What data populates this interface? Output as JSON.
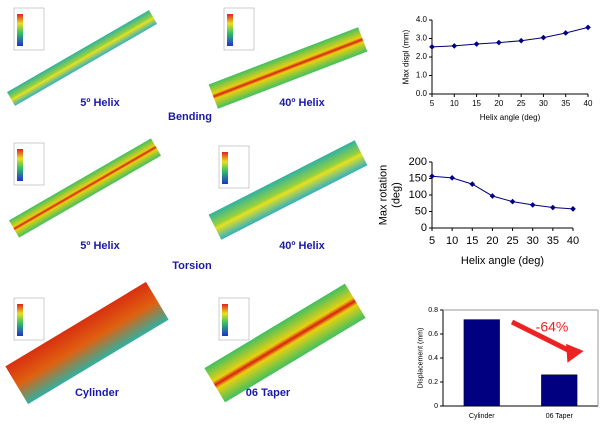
{
  "figures": {
    "rows": [
      {
        "left": "5º Helix",
        "right": "40º Helix",
        "caption": "Bending"
      },
      {
        "left": "5º Helix",
        "right": "40º Helix",
        "caption": "Torsion"
      },
      {
        "left": "Cylinder",
        "right": "06 Taper"
      }
    ]
  },
  "chart_data": [
    {
      "type": "line",
      "xlabel": "Helix angle (deg)",
      "ylabel": [
        "Max displ (mm)"
      ],
      "x": [
        5,
        10,
        15,
        20,
        25,
        30,
        35,
        40
      ],
      "values": [
        2.55,
        2.6,
        2.7,
        2.78,
        2.88,
        3.05,
        3.3,
        3.6
      ],
      "color": "#000080",
      "xlim": [
        5,
        40
      ],
      "xticks": [
        5,
        10,
        15,
        20,
        25,
        30,
        35,
        40
      ],
      "ylim": [
        0,
        4
      ],
      "yticks": [
        {
          "value": 0,
          "label": "0.0"
        },
        {
          "value": 1,
          "label": "1.0"
        },
        {
          "value": 2,
          "label": "2.0"
        },
        {
          "value": 3,
          "label": "3.0"
        },
        {
          "value": 4,
          "label": "4.0"
        }
      ]
    },
    {
      "type": "line",
      "xlabel": "Helix angle (deg)",
      "ylabel": [
        "Max rotation",
        "(deg)"
      ],
      "x": [
        5,
        10,
        15,
        20,
        25,
        30,
        35,
        40
      ],
      "values": [
        157,
        152,
        133,
        97,
        80,
        70,
        62,
        58
      ],
      "color": "#000080",
      "xlim": [
        5,
        40
      ],
      "xticks": [
        5,
        10,
        15,
        20,
        25,
        30,
        35,
        40
      ],
      "ylim": [
        0,
        200
      ],
      "yticks": [
        0,
        50,
        100,
        150,
        200
      ]
    },
    {
      "type": "bar",
      "ylabel": [
        "Displacement (mm)"
      ],
      "categories": [
        "Cylinder",
        "06 Taper"
      ],
      "values": [
        0.72,
        0.26
      ],
      "color": "#000080",
      "ylim": [
        0,
        0.8
      ],
      "yticks": [
        0,
        0.2,
        0.4,
        0.6,
        0.8
      ],
      "annotation": "-64%",
      "annotation_color": "#ee2222"
    }
  ]
}
